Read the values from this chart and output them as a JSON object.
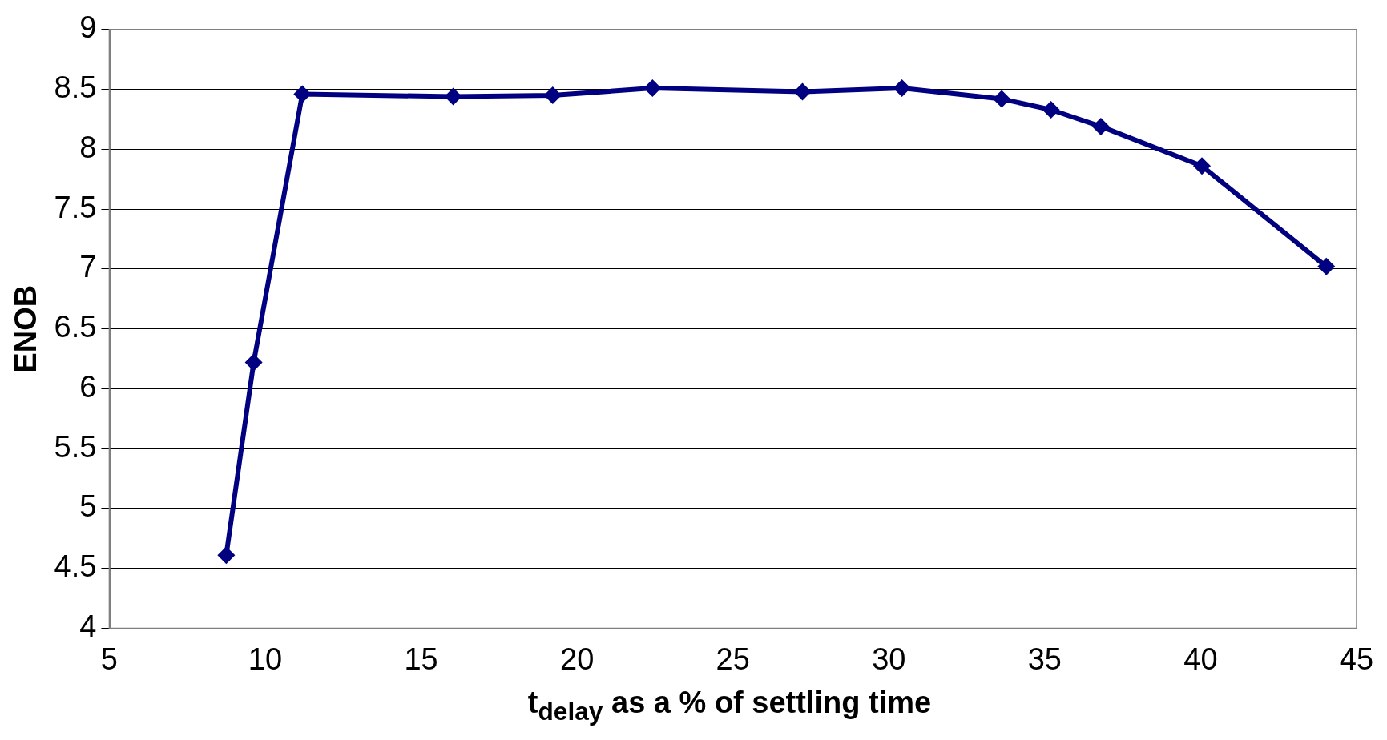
{
  "chart_data": {
    "type": "line",
    "xlabel": "t$_{delay}$ as a % of settling time",
    "ylabel": "ENOB",
    "x": [
      8.75,
      9.63,
      11.19,
      16.03,
      19.22,
      22.42,
      27.23,
      30.42,
      33.62,
      35.2,
      36.8,
      40.04,
      44.03
    ],
    "series": [
      {
        "color": "#000080",
        "values": [
          4.61,
          6.22,
          8.46,
          8.44,
          8.45,
          8.51,
          8.48,
          8.51,
          8.42,
          8.33,
          8.19,
          7.86,
          7.02
        ]
      }
    ],
    "xlim": [
      5,
      45
    ],
    "xticks": [
      5,
      10,
      15,
      20,
      25,
      30,
      35,
      40,
      45
    ],
    "ylim": [
      4,
      9
    ],
    "yticks": [
      4,
      4.5,
      5,
      5.5,
      6,
      6.5,
      7,
      7.5,
      8,
      8.5,
      9
    ],
    "grid": "y",
    "legend": false,
    "marker": "diamond",
    "line_style": "solid"
  }
}
